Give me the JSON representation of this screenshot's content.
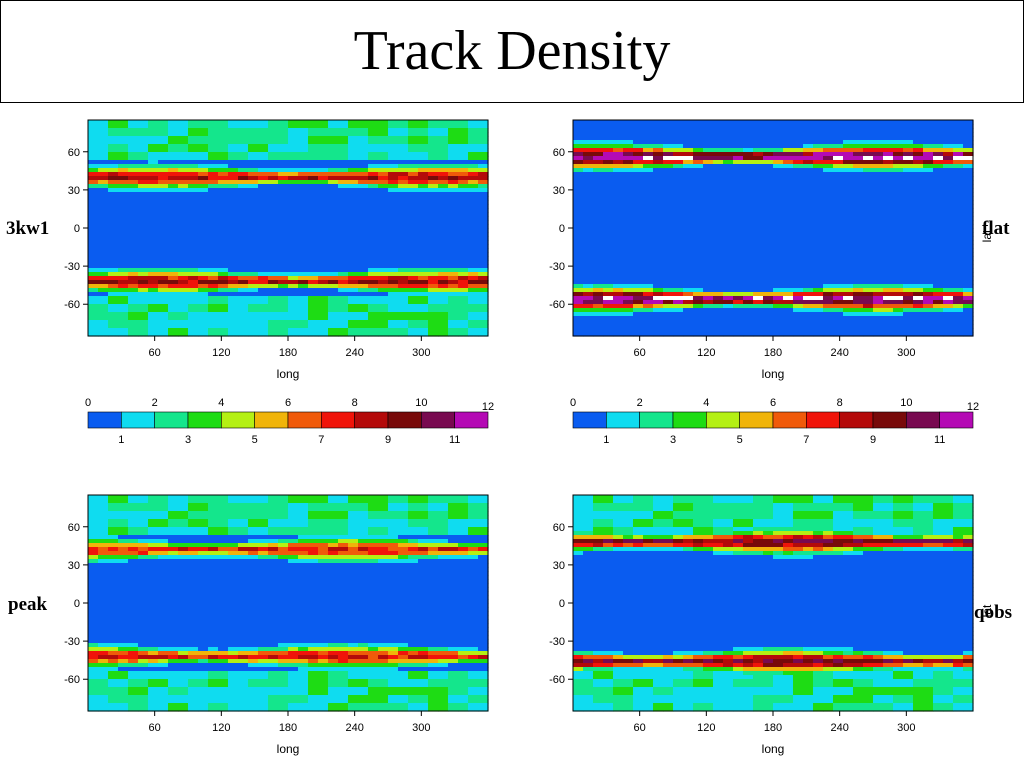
{
  "slide": {
    "title": "Track Density"
  },
  "chart_data": [
    {
      "type": "heatmap",
      "label": "3kw1",
      "xlabel": "long",
      "ylabel": "",
      "xlim": [
        0,
        360
      ],
      "ylim": [
        -85,
        85
      ],
      "xticks": [
        60,
        120,
        180,
        240,
        300
      ],
      "yticks": [
        60,
        30,
        0,
        -30,
        -60
      ],
      "storm_tracks": [
        {
          "lat": 40,
          "peak_level": 9
        },
        {
          "lat": -42,
          "peak_level": 9
        }
      ],
      "level_range": [
        0,
        12
      ]
    },
    {
      "type": "heatmap",
      "label": "flat",
      "xlabel": "long",
      "ylabel": "lat",
      "xlim": [
        0,
        360
      ],
      "ylim": [
        -85,
        85
      ],
      "xticks": [
        60,
        120,
        180,
        240,
        300
      ],
      "yticks": [
        60,
        30,
        0,
        -30,
        -60
      ],
      "storm_tracks": [
        {
          "lat": 56,
          "peak_level": 12
        },
        {
          "lat": -56,
          "peak_level": 12
        }
      ],
      "level_range": [
        0,
        12
      ]
    },
    {
      "type": "heatmap",
      "label": "peak",
      "xlabel": "long",
      "ylabel": "",
      "xlim": [
        0,
        360
      ],
      "ylim": [
        -85,
        85
      ],
      "xticks": [
        60,
        120,
        180,
        240,
        300
      ],
      "yticks": [
        60,
        30,
        0,
        -30,
        -60
      ],
      "storm_tracks": [
        {
          "lat": 42,
          "peak_level": 8
        },
        {
          "lat": -42,
          "peak_level": 8
        }
      ],
      "level_range": [
        0,
        12
      ]
    },
    {
      "type": "heatmap",
      "label": "qobs",
      "xlabel": "long",
      "ylabel": "lat",
      "xlim": [
        0,
        360
      ],
      "ylim": [
        -85,
        85
      ],
      "xticks": [
        60,
        120,
        180,
        240,
        300
      ],
      "yticks": [
        60,
        30,
        0,
        -30,
        -60
      ],
      "storm_tracks": [
        {
          "lat": 48,
          "peak_level": 10
        },
        {
          "lat": -46,
          "peak_level": 10
        }
      ],
      "level_range": [
        0,
        12
      ]
    }
  ],
  "colorbar": {
    "top_labels": [
      "0",
      "2",
      "4",
      "6",
      "8",
      "10",
      "12"
    ],
    "bottom_labels": [
      "1",
      "3",
      "5",
      "7",
      "9",
      "11"
    ],
    "colors": [
      "#0a5cf0",
      "#0fdcf0",
      "#14e68c",
      "#1edc14",
      "#b4f014",
      "#f0b40a",
      "#f05a0a",
      "#f0140a",
      "#b40a0a",
      "#780a0a",
      "#780a50",
      "#b40ab4"
    ]
  },
  "colors": {
    "background_field": "#0a5cf0",
    "polar_field": "#0fdcf0",
    "saturated": "#ffffff"
  }
}
